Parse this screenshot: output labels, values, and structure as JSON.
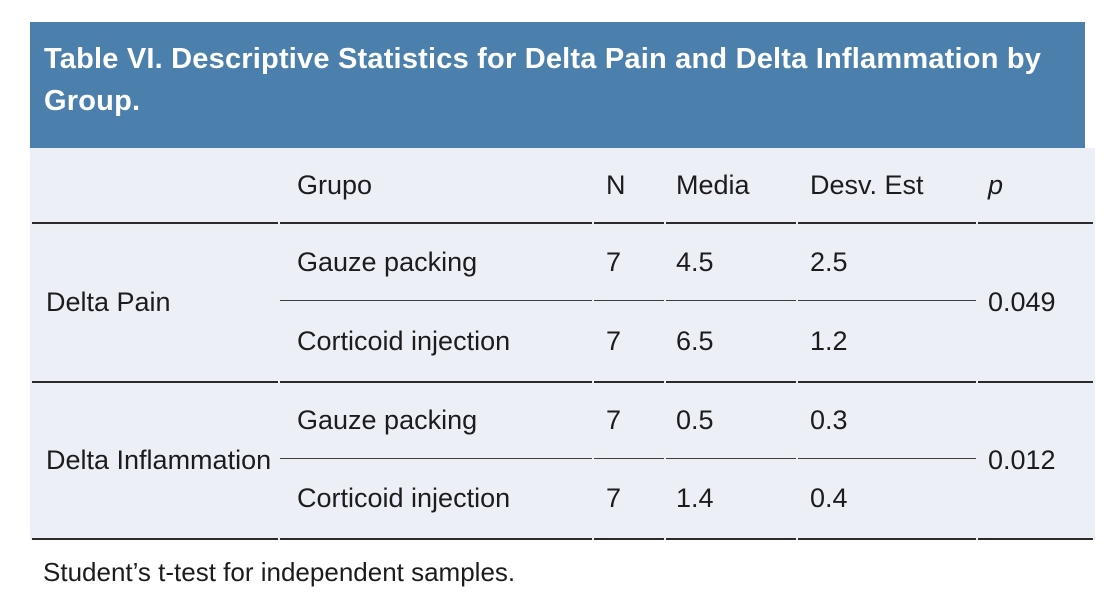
{
  "table": {
    "title": "Table VI. Descriptive Statistics for Delta Pain and Delta Inflammation by Group.",
    "columns": {
      "row_label": "",
      "grupo": "Grupo",
      "n": "N",
      "media": "Media",
      "desv": "Desv. Est",
      "p": "p"
    },
    "sections": [
      {
        "label": "Delta Pain",
        "p": "0.049",
        "rows": [
          {
            "grupo": "Gauze packing",
            "n": "7",
            "media": "4.5",
            "desv": "2.5"
          },
          {
            "grupo": "Corticoid injection",
            "n": "7",
            "media": "6.5",
            "desv": "1.2"
          }
        ]
      },
      {
        "label": "Delta Inflammation",
        "p": "0.012",
        "rows": [
          {
            "grupo": "Gauze packing",
            "n": "7",
            "media": "0.5",
            "desv": "0.3"
          },
          {
            "grupo": "Corticoid injection",
            "n": "7",
            "media": "1.4",
            "desv": "0.4"
          }
        ]
      }
    ],
    "footnote": "Student’s t-test for independent samples."
  },
  "chart_data": {
    "type": "table",
    "title": "Table VI. Descriptive Statistics for Delta Pain and Delta Inflammation by Group.",
    "columns": [
      "Grupo",
      "N",
      "Media",
      "Desv. Est",
      "p"
    ],
    "rows": [
      {
        "measure": "Delta Pain",
        "grupo": "Gauze packing",
        "n": 7,
        "media": 4.5,
        "desv_est": 2.5,
        "p": 0.049
      },
      {
        "measure": "Delta Pain",
        "grupo": "Corticoid injection",
        "n": 7,
        "media": 6.5,
        "desv_est": 1.2,
        "p": 0.049
      },
      {
        "measure": "Delta Inflammation",
        "grupo": "Gauze packing",
        "n": 7,
        "media": 0.5,
        "desv_est": 0.3,
        "p": 0.012
      },
      {
        "measure": "Delta Inflammation",
        "grupo": "Corticoid injection",
        "n": 7,
        "media": 1.4,
        "desv_est": 0.4,
        "p": 0.012
      }
    ],
    "footnote": "Student’s t-test for independent samples."
  },
  "colors": {
    "header_bg": "#4B7FAC",
    "body_bg": "#EDEFF6",
    "title_text": "#FFFFFF",
    "text": "#1C1C1E",
    "rule_major": "#2B2B2B",
    "rule_minor": "#3D3D3D"
  }
}
